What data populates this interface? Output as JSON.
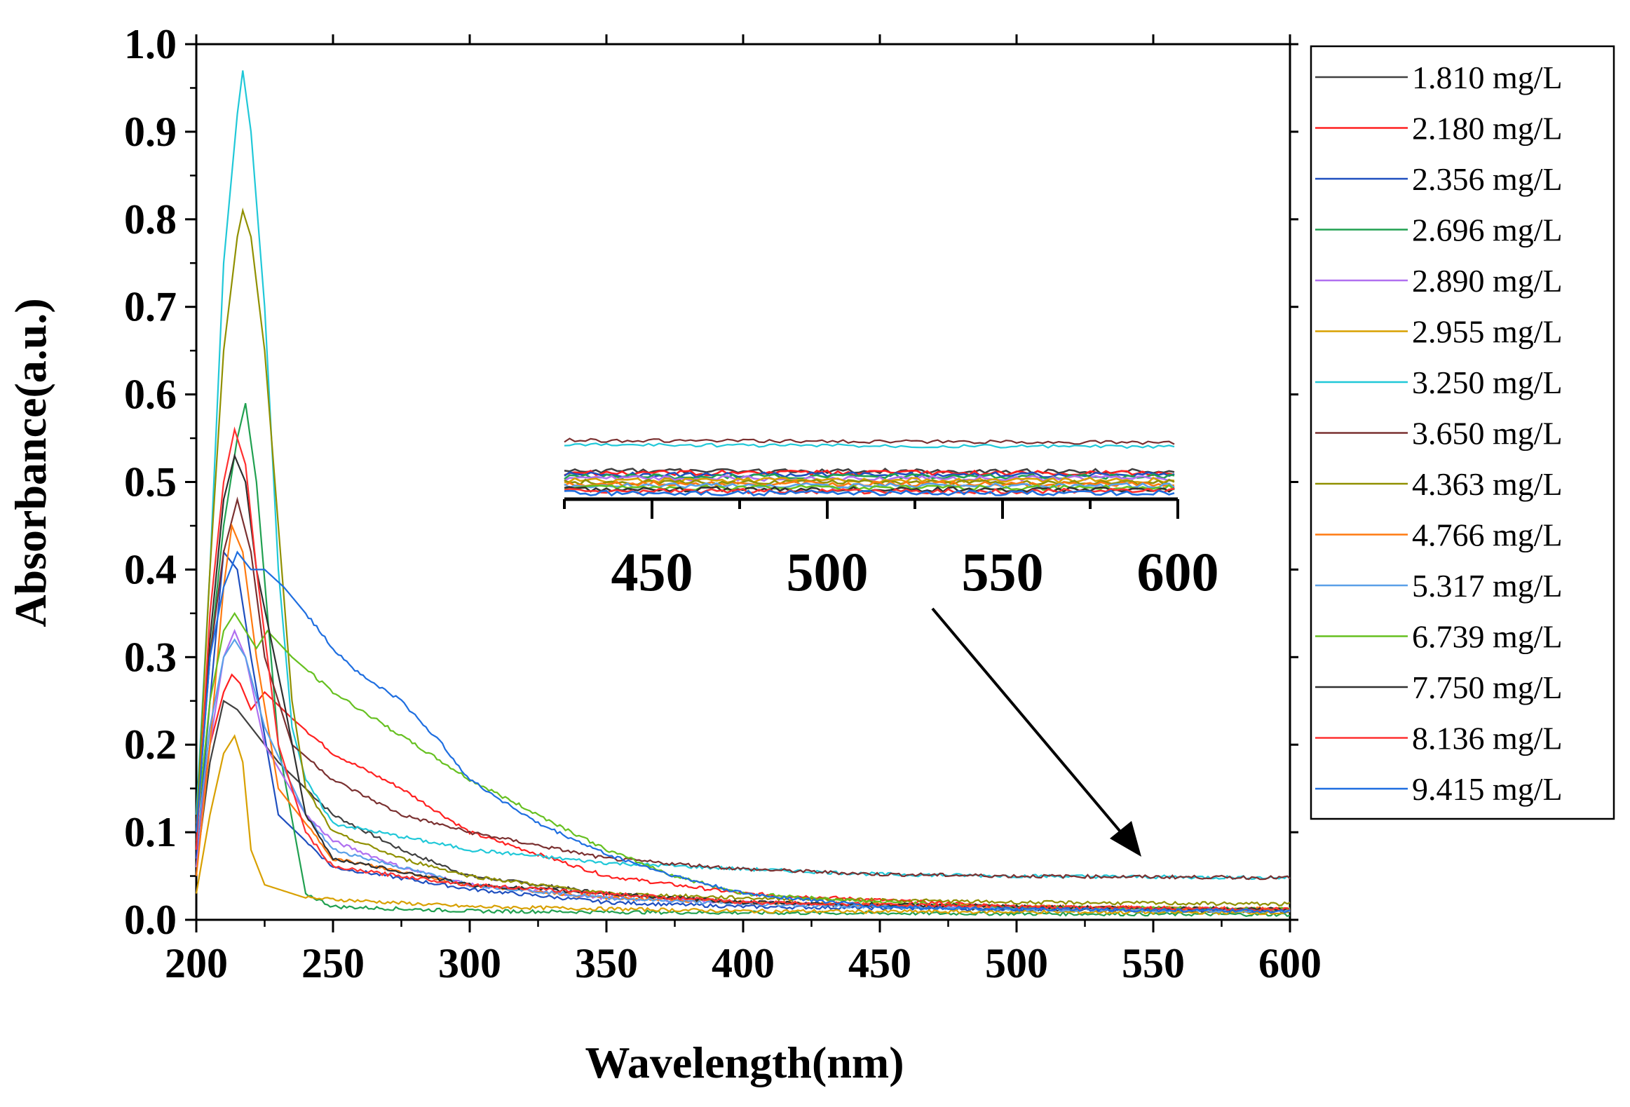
{
  "chart_data": {
    "type": "line",
    "xlabel": "Wavelength(nm)",
    "ylabel": "Absorbance(a.u.)",
    "xlim": [
      200,
      600
    ],
    "ylim": [
      0.0,
      1.0
    ],
    "x_ticks": [
      200,
      250,
      300,
      350,
      400,
      450,
      500,
      550,
      600
    ],
    "x_tick_labels": [
      "200",
      "250",
      "300",
      "350",
      "400",
      "450",
      "500",
      "550",
      "600"
    ],
    "y_ticks": [
      0.0,
      0.1,
      0.2,
      0.3,
      0.4,
      0.5,
      0.6,
      0.7,
      0.8,
      0.9,
      1.0
    ],
    "y_tick_labels": [
      "0.0",
      "0.1",
      "0.2",
      "0.3",
      "0.4",
      "0.5",
      "0.6",
      "0.7",
      "0.8",
      "0.9",
      "1.0"
    ],
    "legend_position": "right, outside plot",
    "grid": false,
    "series": [
      {
        "name": "1.810 mg/L",
        "color": "#404040",
        "points": [
          [
            200,
            0.06
          ],
          [
            205,
            0.18
          ],
          [
            210,
            0.25
          ],
          [
            215,
            0.24
          ],
          [
            220,
            0.22
          ],
          [
            230,
            0.18
          ],
          [
            250,
            0.12
          ],
          [
            275,
            0.08
          ],
          [
            300,
            0.05
          ],
          [
            350,
            0.03
          ],
          [
            400,
            0.02
          ],
          [
            500,
            0.012
          ],
          [
            600,
            0.01
          ]
        ]
      },
      {
        "name": "2.180 mg/L",
        "color": "#ff2020",
        "points": [
          [
            200,
            0.08
          ],
          [
            205,
            0.2
          ],
          [
            210,
            0.26
          ],
          [
            213,
            0.28
          ],
          [
            216,
            0.27
          ],
          [
            220,
            0.24
          ],
          [
            225,
            0.26
          ],
          [
            235,
            0.23
          ],
          [
            250,
            0.19
          ],
          [
            275,
            0.15
          ],
          [
            300,
            0.1
          ],
          [
            350,
            0.05
          ],
          [
            400,
            0.03
          ],
          [
            500,
            0.015
          ],
          [
            600,
            0.012
          ]
        ]
      },
      {
        "name": "2.356 mg/L",
        "color": "#1f4fbf",
        "points": [
          [
            200,
            0.07
          ],
          [
            205,
            0.25
          ],
          [
            210,
            0.42
          ],
          [
            215,
            0.4
          ],
          [
            220,
            0.3
          ],
          [
            230,
            0.12
          ],
          [
            250,
            0.06
          ],
          [
            300,
            0.035
          ],
          [
            350,
            0.02
          ],
          [
            400,
            0.015
          ],
          [
            500,
            0.012
          ],
          [
            600,
            0.01
          ]
        ]
      },
      {
        "name": "2.696 mg/L",
        "color": "#20a050",
        "points": [
          [
            200,
            0.1
          ],
          [
            205,
            0.3
          ],
          [
            210,
            0.45
          ],
          [
            215,
            0.55
          ],
          [
            218,
            0.59
          ],
          [
            222,
            0.5
          ],
          [
            230,
            0.2
          ],
          [
            240,
            0.03
          ],
          [
            250,
            0.015
          ],
          [
            300,
            0.01
          ],
          [
            400,
            0.008
          ],
          [
            600,
            0.006
          ]
        ]
      },
      {
        "name": "2.890 mg/L",
        "color": "#b070f0",
        "points": [
          [
            200,
            0.06
          ],
          [
            205,
            0.2
          ],
          [
            210,
            0.3
          ],
          [
            214,
            0.33
          ],
          [
            218,
            0.3
          ],
          [
            225,
            0.2
          ],
          [
            240,
            0.12
          ],
          [
            250,
            0.09
          ],
          [
            275,
            0.06
          ],
          [
            300,
            0.04
          ],
          [
            350,
            0.025
          ],
          [
            400,
            0.02
          ],
          [
            500,
            0.014
          ],
          [
            600,
            0.012
          ]
        ]
      },
      {
        "name": "2.955 mg/L",
        "color": "#d8a000",
        "points": [
          [
            200,
            0.03
          ],
          [
            205,
            0.12
          ],
          [
            210,
            0.19
          ],
          [
            214,
            0.21
          ],
          [
            217,
            0.18
          ],
          [
            220,
            0.08
          ],
          [
            225,
            0.04
          ],
          [
            240,
            0.025
          ],
          [
            300,
            0.015
          ],
          [
            400,
            0.01
          ],
          [
            600,
            0.008
          ]
        ]
      },
      {
        "name": "3.250 mg/L",
        "color": "#20c8d8",
        "points": [
          [
            200,
            0.12
          ],
          [
            205,
            0.4
          ],
          [
            210,
            0.75
          ],
          [
            215,
            0.92
          ],
          [
            217,
            0.97
          ],
          [
            220,
            0.9
          ],
          [
            225,
            0.7
          ],
          [
            230,
            0.4
          ],
          [
            235,
            0.22
          ],
          [
            240,
            0.16
          ],
          [
            250,
            0.11
          ],
          [
            275,
            0.095
          ],
          [
            300,
            0.08
          ],
          [
            350,
            0.065
          ],
          [
            400,
            0.058
          ],
          [
            450,
            0.052
          ],
          [
            500,
            0.05
          ],
          [
            550,
            0.049
          ],
          [
            600,
            0.048
          ]
        ]
      },
      {
        "name": "3.650 mg/L",
        "color": "#7a3030",
        "points": [
          [
            200,
            0.11
          ],
          [
            205,
            0.3
          ],
          [
            210,
            0.42
          ],
          [
            215,
            0.48
          ],
          [
            220,
            0.42
          ],
          [
            225,
            0.3
          ],
          [
            235,
            0.2
          ],
          [
            250,
            0.16
          ],
          [
            275,
            0.12
          ],
          [
            300,
            0.1
          ],
          [
            350,
            0.07
          ],
          [
            400,
            0.058
          ],
          [
            450,
            0.052
          ],
          [
            500,
            0.05
          ],
          [
            550,
            0.049
          ],
          [
            600,
            0.048
          ]
        ]
      },
      {
        "name": "4.363 mg/L",
        "color": "#909000",
        "points": [
          [
            200,
            0.1
          ],
          [
            205,
            0.4
          ],
          [
            210,
            0.65
          ],
          [
            215,
            0.78
          ],
          [
            217,
            0.81
          ],
          [
            220,
            0.78
          ],
          [
            225,
            0.65
          ],
          [
            230,
            0.45
          ],
          [
            235,
            0.25
          ],
          [
            240,
            0.15
          ],
          [
            250,
            0.1
          ],
          [
            275,
            0.07
          ],
          [
            300,
            0.05
          ],
          [
            350,
            0.03
          ],
          [
            400,
            0.025
          ],
          [
            500,
            0.02
          ],
          [
            600,
            0.018
          ]
        ]
      },
      {
        "name": "4.766 mg/L",
        "color": "#ff7a10",
        "points": [
          [
            200,
            0.05
          ],
          [
            205,
            0.2
          ],
          [
            210,
            0.38
          ],
          [
            213,
            0.45
          ],
          [
            217,
            0.42
          ],
          [
            222,
            0.3
          ],
          [
            230,
            0.15
          ],
          [
            250,
            0.07
          ],
          [
            300,
            0.04
          ],
          [
            350,
            0.025
          ],
          [
            400,
            0.02
          ],
          [
            500,
            0.015
          ],
          [
            600,
            0.012
          ]
        ]
      },
      {
        "name": "5.317 mg/L",
        "color": "#5aa0e8",
        "points": [
          [
            200,
            0.08
          ],
          [
            205,
            0.22
          ],
          [
            210,
            0.3
          ],
          [
            214,
            0.32
          ],
          [
            218,
            0.3
          ],
          [
            225,
            0.22
          ],
          [
            240,
            0.12
          ],
          [
            250,
            0.08
          ],
          [
            300,
            0.04
          ],
          [
            350,
            0.025
          ],
          [
            400,
            0.018
          ],
          [
            500,
            0.012
          ],
          [
            600,
            0.01
          ]
        ]
      },
      {
        "name": "6.739 mg/L",
        "color": "#66c020",
        "points": [
          [
            200,
            0.1
          ],
          [
            205,
            0.25
          ],
          [
            210,
            0.33
          ],
          [
            214,
            0.35
          ],
          [
            218,
            0.33
          ],
          [
            222,
            0.31
          ],
          [
            226,
            0.33
          ],
          [
            235,
            0.3
          ],
          [
            250,
            0.26
          ],
          [
            275,
            0.21
          ],
          [
            300,
            0.16
          ],
          [
            325,
            0.12
          ],
          [
            350,
            0.08
          ],
          [
            375,
            0.05
          ],
          [
            400,
            0.03
          ],
          [
            450,
            0.02
          ],
          [
            500,
            0.015
          ],
          [
            600,
            0.012
          ]
        ]
      },
      {
        "name": "7.750 mg/L",
        "color": "#303030",
        "points": [
          [
            200,
            0.09
          ],
          [
            205,
            0.32
          ],
          [
            210,
            0.48
          ],
          [
            214,
            0.53
          ],
          [
            218,
            0.5
          ],
          [
            222,
            0.4
          ],
          [
            226,
            0.34
          ],
          [
            232,
            0.25
          ],
          [
            240,
            0.12
          ],
          [
            250,
            0.07
          ],
          [
            300,
            0.04
          ],
          [
            350,
            0.03
          ],
          [
            400,
            0.02
          ],
          [
            500,
            0.015
          ],
          [
            600,
            0.012
          ]
        ]
      },
      {
        "name": "8.136 mg/L",
        "color": "#ff3030",
        "points": [
          [
            200,
            0.08
          ],
          [
            205,
            0.35
          ],
          [
            210,
            0.5
          ],
          [
            214,
            0.56
          ],
          [
            218,
            0.52
          ],
          [
            222,
            0.4
          ],
          [
            230,
            0.2
          ],
          [
            240,
            0.1
          ],
          [
            250,
            0.06
          ],
          [
            300,
            0.04
          ],
          [
            350,
            0.03
          ],
          [
            400,
            0.02
          ],
          [
            500,
            0.015
          ],
          [
            600,
            0.012
          ]
        ]
      },
      {
        "name": "9.415 mg/L",
        "color": "#1e6ee0",
        "points": [
          [
            200,
            0.1
          ],
          [
            205,
            0.3
          ],
          [
            210,
            0.38
          ],
          [
            215,
            0.42
          ],
          [
            220,
            0.4
          ],
          [
            225,
            0.4
          ],
          [
            232,
            0.38
          ],
          [
            240,
            0.35
          ],
          [
            250,
            0.31
          ],
          [
            260,
            0.28
          ],
          [
            275,
            0.25
          ],
          [
            290,
            0.2
          ],
          [
            300,
            0.16
          ],
          [
            325,
            0.11
          ],
          [
            350,
            0.075
          ],
          [
            375,
            0.05
          ],
          [
            400,
            0.03
          ],
          [
            450,
            0.015
          ],
          [
            500,
            0.012
          ],
          [
            600,
            0.01
          ]
        ]
      }
    ],
    "inset": {
      "xlim": [
        425,
        600
      ],
      "x_tick_labels": [
        "450",
        "500",
        "550",
        "600"
      ],
      "x_ticks": [
        450,
        500,
        550,
        600
      ],
      "annotation": "arrow pointing from inset to tail region near 550 nm"
    }
  },
  "legend": {
    "entries": [
      {
        "label": "1.810 mg/L",
        "color": "#404040"
      },
      {
        "label": "2.180 mg/L",
        "color": "#ff2020"
      },
      {
        "label": "2.356 mg/L",
        "color": "#1f4fbf"
      },
      {
        "label": "2.696 mg/L",
        "color": "#20a050"
      },
      {
        "label": "2.890 mg/L",
        "color": "#b070f0"
      },
      {
        "label": "2.955 mg/L",
        "color": "#d8a000"
      },
      {
        "label": "3.250 mg/L",
        "color": "#20c8d8"
      },
      {
        "label": "3.650 mg/L",
        "color": "#7a3030"
      },
      {
        "label": "4.363 mg/L",
        "color": "#909000"
      },
      {
        "label": "4.766 mg/L",
        "color": "#ff7a10"
      },
      {
        "label": "5.317 mg/L",
        "color": "#5aa0e8"
      },
      {
        "label": "6.739 mg/L",
        "color": "#66c020"
      },
      {
        "label": "7.750 mg/L",
        "color": "#303030"
      },
      {
        "label": "8.136 mg/L",
        "color": "#ff3030"
      },
      {
        "label": "9.415 mg/L",
        "color": "#1e6ee0"
      }
    ]
  }
}
